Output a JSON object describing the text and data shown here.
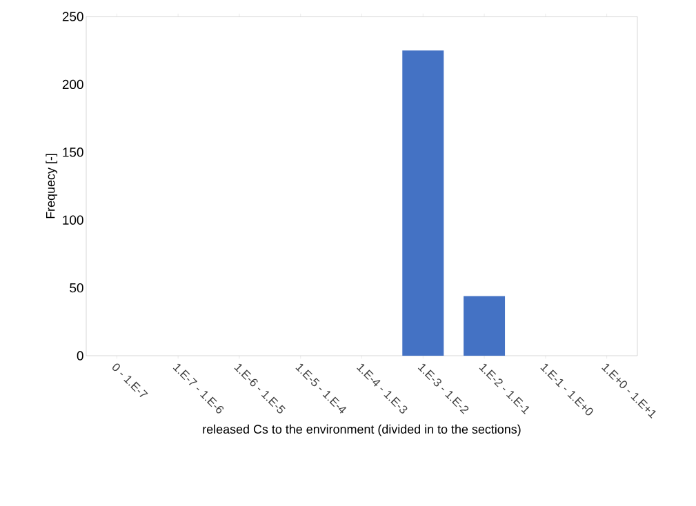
{
  "chart_data": {
    "type": "bar",
    "xlabel": "released Cs to the environment (divided in to the sections)",
    "ylabel": "Frequecy [-]",
    "categories": [
      "0 - 1.E-7",
      "1.E-7 - 1.E-6",
      "1.E-6 - 1.E-5",
      "1.E-5 - 1.E-4",
      "1.E-4 - 1.E-3",
      "1.E-3 - 1.E-2",
      "1.E-2 - 1.E-1",
      "1.E-1 - 1.E+0",
      "1.E+0 - 1.E+1"
    ],
    "values": [
      0,
      0,
      0,
      0,
      0,
      225,
      44,
      0,
      0
    ],
    "color": "#4472c4",
    "ylim": [
      0,
      250
    ],
    "yticks": [
      0,
      50,
      100,
      150,
      200,
      250
    ],
    "grid": false
  }
}
